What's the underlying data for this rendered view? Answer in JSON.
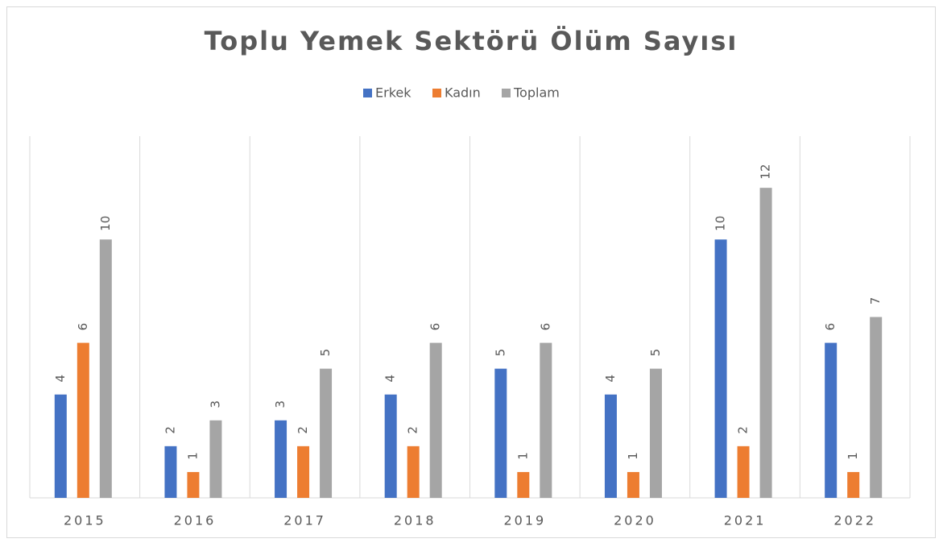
{
  "chart_data": {
    "type": "bar",
    "title": "Toplu Yemek Sektörü Ölüm Sayısı",
    "categories": [
      "2015",
      "2016",
      "2017",
      "2018",
      "2019",
      "2020",
      "2021",
      "2022"
    ],
    "series": [
      {
        "name": "Erkek",
        "color": "#4472c4",
        "values": [
          4,
          2,
          3,
          4,
          5,
          4,
          10,
          6
        ]
      },
      {
        "name": "Kadın",
        "color": "#ed7d31",
        "values": [
          6,
          1,
          2,
          2,
          1,
          1,
          2,
          1
        ]
      },
      {
        "name": "Toplam",
        "color": "#a5a5a5",
        "values": [
          10,
          3,
          5,
          6,
          6,
          5,
          12,
          7
        ]
      }
    ],
    "ylim": [
      0,
      14
    ],
    "legend": "top"
  }
}
